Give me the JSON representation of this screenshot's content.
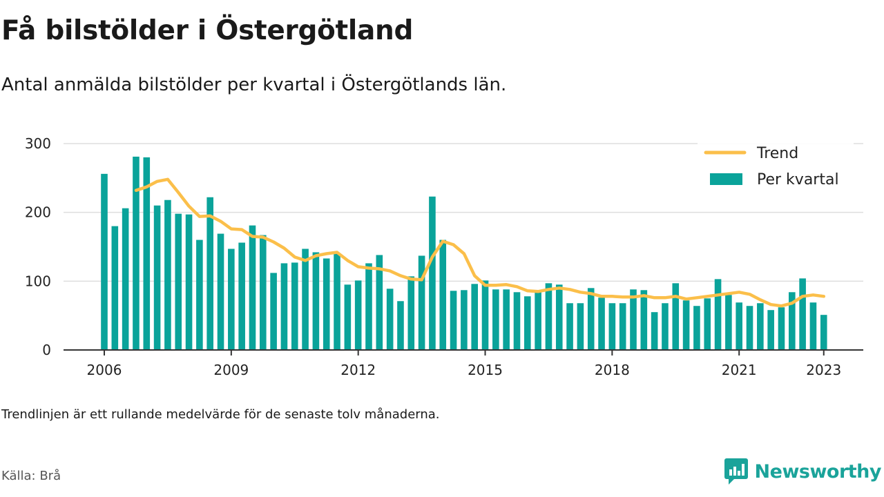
{
  "title": "Få bilstölder i Östergötland",
  "subtitle": "Antal anmälda bilstölder per kvartal i Östergötlands län.",
  "note": "Trendlinjen är ett rullande medelvärde för de senaste tolv månaderna.",
  "source": "Källa: Brå",
  "brand": {
    "name": "Newsworthy",
    "icon": "newsworthy-logo-icon",
    "color": "#1aa39a"
  },
  "colors": {
    "bars": "#0aa39a",
    "trend": "#fbbf4a",
    "grid": "#dddddd",
    "axis": "#333333"
  },
  "chart_data": {
    "type": "bar",
    "ylim": [
      0,
      300
    ],
    "yticks": [
      0,
      100,
      200,
      300
    ],
    "xticks": [
      "2006",
      "2009",
      "2012",
      "2015",
      "2018",
      "2021",
      "2023"
    ],
    "grid": true,
    "legend_position": "top-right",
    "legend": [
      "Trend",
      "Per kvartal"
    ],
    "categories": [
      "2006 Q1",
      "2006 Q2",
      "2006 Q3",
      "2006 Q4",
      "2007 Q1",
      "2007 Q2",
      "2007 Q3",
      "2007 Q4",
      "2008 Q1",
      "2008 Q2",
      "2008 Q3",
      "2008 Q4",
      "2009 Q1",
      "2009 Q2",
      "2009 Q3",
      "2009 Q4",
      "2010 Q1",
      "2010 Q2",
      "2010 Q3",
      "2010 Q4",
      "2011 Q1",
      "2011 Q2",
      "2011 Q3",
      "2011 Q4",
      "2012 Q1",
      "2012 Q2",
      "2012 Q3",
      "2012 Q4",
      "2013 Q1",
      "2013 Q2",
      "2013 Q3",
      "2013 Q4",
      "2014 Q1",
      "2014 Q2",
      "2014 Q3",
      "2014 Q4",
      "2015 Q1",
      "2015 Q2",
      "2015 Q3",
      "2015 Q4",
      "2016 Q1",
      "2016 Q2",
      "2016 Q3",
      "2016 Q4",
      "2017 Q1",
      "2017 Q2",
      "2017 Q3",
      "2017 Q4",
      "2018 Q1",
      "2018 Q2",
      "2018 Q3",
      "2018 Q4",
      "2019 Q1",
      "2019 Q2",
      "2019 Q3",
      "2019 Q4",
      "2020 Q1",
      "2020 Q2",
      "2020 Q3",
      "2020 Q4",
      "2021 Q1",
      "2021 Q2",
      "2021 Q3",
      "2021 Q4",
      "2022 Q1",
      "2022 Q2",
      "2022 Q3",
      "2022 Q4",
      "2023 Q1"
    ],
    "series": [
      {
        "name": "Per kvartal",
        "type": "bar",
        "values": [
          256,
          180,
          206,
          281,
          280,
          210,
          218,
          198,
          197,
          160,
          222,
          169,
          147,
          156,
          181,
          167,
          112,
          126,
          127,
          147,
          142,
          133,
          141,
          95,
          101,
          126,
          138,
          89,
          71,
          107,
          137,
          223,
          160,
          86,
          87,
          96,
          101,
          88,
          88,
          84,
          78,
          84,
          97,
          95,
          68,
          68,
          90,
          76,
          68,
          68,
          88,
          87,
          55,
          68,
          97,
          72,
          64,
          75,
          103,
          80,
          69,
          64,
          68,
          58,
          62,
          84,
          104,
          69,
          51
        ]
      },
      {
        "name": "Trend",
        "type": "line",
        "values": [
          null,
          null,
          null,
          232,
          237,
          245,
          248,
          229,
          209,
          194,
          195,
          187,
          176,
          175,
          165,
          164,
          157,
          148,
          135,
          130,
          137,
          140,
          142,
          130,
          121,
          119,
          118,
          115,
          108,
          103,
          102,
          135,
          158,
          153,
          140,
          108,
          94,
          94,
          95,
          92,
          86,
          85,
          88,
          90,
          88,
          84,
          82,
          78,
          78,
          77,
          77,
          79,
          76,
          76,
          78,
          74,
          76,
          78,
          80,
          82,
          84,
          81,
          73,
          66,
          64,
          68,
          78,
          80,
          78
        ]
      }
    ]
  }
}
